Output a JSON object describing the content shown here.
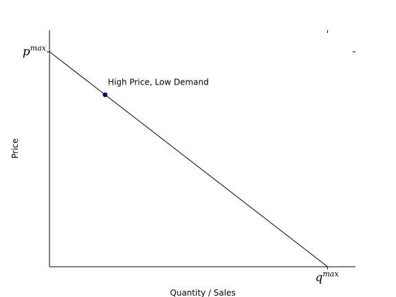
{
  "chart_data": {
    "type": "line",
    "title": "",
    "xlabel": "Quantity / Sales",
    "ylabel": "Price",
    "xlim": [
      0,
      1.1
    ],
    "ylim": [
      0,
      1.1
    ],
    "grid": false,
    "x_ticks": [
      {
        "value": 1.0,
        "base": "q",
        "sup": "max"
      }
    ],
    "y_ticks": [
      {
        "value": 1.0,
        "base": "p",
        "sup": "max"
      }
    ],
    "series": [
      {
        "x": [
          0,
          1.0
        ],
        "y": [
          1.0,
          0
        ],
        "color": "#000000"
      }
    ],
    "points": [
      {
        "x": 0.2,
        "y": 0.8,
        "color": "#000080"
      }
    ],
    "annotations": [
      {
        "text": "High Price, Low Demand",
        "x": 0.21,
        "y": 0.845
      }
    ]
  }
}
